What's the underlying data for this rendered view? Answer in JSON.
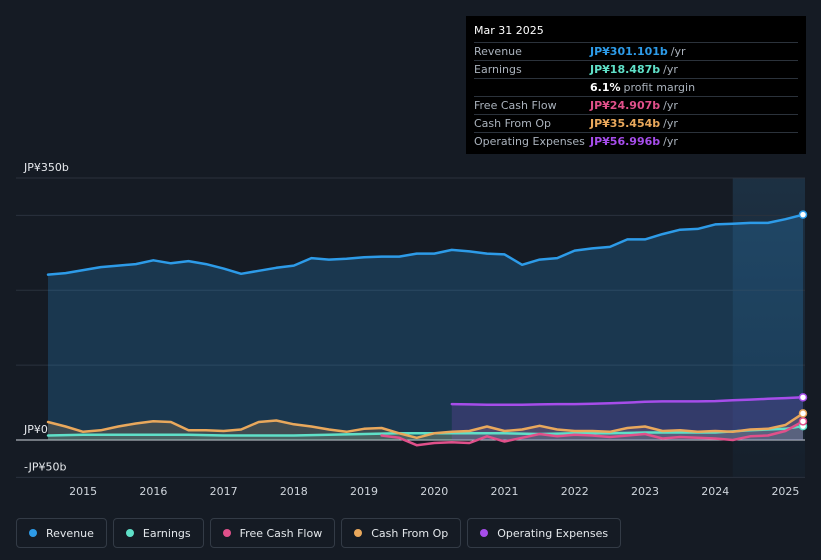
{
  "tooltip": {
    "date": "Mar 31 2025",
    "rows": [
      {
        "label": "Revenue",
        "value": "JP¥301.101b",
        "unit": "/yr",
        "color": "#2d9be8"
      },
      {
        "label": "Earnings",
        "value": "JP¥18.487b",
        "unit": "/yr",
        "color": "#5fe0c8"
      },
      {
        "label": "",
        "value": "6.1%",
        "unit": "profit margin",
        "color": "#ffffff"
      },
      {
        "label": "Free Cash Flow",
        "value": "JP¥24.907b",
        "unit": "/yr",
        "color": "#e0508a"
      },
      {
        "label": "Cash From Op",
        "value": "JP¥35.454b",
        "unit": "/yr",
        "color": "#e9a85c"
      },
      {
        "label": "Operating Expenses",
        "value": "JP¥56.996b",
        "unit": "/yr",
        "color": "#a64dea"
      }
    ]
  },
  "legend": [
    {
      "label": "Revenue",
      "color": "#2d9be8"
    },
    {
      "label": "Earnings",
      "color": "#5fe0c8"
    },
    {
      "label": "Free Cash Flow",
      "color": "#e0508a"
    },
    {
      "label": "Cash From Op",
      "color": "#e9a85c"
    },
    {
      "label": "Operating Expenses",
      "color": "#a64dea"
    }
  ],
  "chart_data": {
    "type": "area",
    "title": "",
    "ylim": [
      -50,
      350
    ],
    "y_axis_labels": [
      {
        "value": 350,
        "text": "JP¥350b"
      },
      {
        "value": 0,
        "text": "JP¥0"
      },
      {
        "value": -50,
        "text": "-JP¥50b"
      }
    ],
    "xlim": [
      2014.5,
      2025.25
    ],
    "x_ticks": [
      {
        "value": 2015,
        "text": "2015"
      },
      {
        "value": 2016,
        "text": "2016"
      },
      {
        "value": 2017,
        "text": "2017"
      },
      {
        "value": 2018,
        "text": "2018"
      },
      {
        "value": 2019,
        "text": "2019"
      },
      {
        "value": 2020,
        "text": "2020"
      },
      {
        "value": 2021,
        "text": "2021"
      },
      {
        "value": 2022,
        "text": "2022"
      },
      {
        "value": 2023,
        "text": "2023"
      },
      {
        "value": 2024,
        "text": "2024"
      },
      {
        "value": 2025,
        "text": "2025"
      }
    ],
    "highlight_start": 2024.25,
    "series": [
      {
        "name": "Revenue",
        "color": "#2d9be8",
        "fill": true,
        "x": [
          2014.5,
          2014.75,
          2015,
          2015.25,
          2015.5,
          2015.75,
          2016,
          2016.25,
          2016.5,
          2016.75,
          2017,
          2017.25,
          2017.5,
          2017.75,
          2018,
          2018.25,
          2018.5,
          2018.75,
          2019,
          2019.25,
          2019.5,
          2019.75,
          2020,
          2020.25,
          2020.5,
          2020.75,
          2021,
          2021.25,
          2021.5,
          2021.75,
          2022,
          2022.25,
          2022.5,
          2022.75,
          2023,
          2023.25,
          2023.5,
          2023.75,
          2024,
          2024.25,
          2024.5,
          2024.75,
          2025,
          2025.25
        ],
        "values": [
          221,
          223,
          227,
          231,
          233,
          235,
          240,
          236,
          239,
          235,
          229,
          222,
          226,
          230,
          233,
          243,
          241,
          242,
          244,
          245,
          245,
          249,
          249,
          254,
          252,
          249,
          248,
          234,
          241,
          243,
          253,
          256,
          258,
          268,
          268,
          275,
          281,
          282,
          288,
          289,
          290,
          290,
          295,
          301
        ]
      },
      {
        "name": "Earnings",
        "color": "#5fe0c8",
        "fill": true,
        "x": [
          2014.5,
          2015,
          2015.5,
          2016,
          2016.5,
          2017,
          2017.5,
          2018,
          2018.5,
          2019,
          2019.5,
          2020,
          2020.5,
          2021,
          2021.5,
          2022,
          2022.5,
          2023,
          2023.5,
          2024,
          2024.5,
          2025,
          2025.25
        ],
        "values": [
          6,
          7,
          7,
          7,
          7,
          6,
          6,
          6,
          7,
          8,
          9,
          9,
          9,
          9,
          8,
          9,
          9,
          10,
          10,
          10,
          13,
          15,
          18.5
        ]
      },
      {
        "name": "Free Cash Flow",
        "color": "#e0508a",
        "fill": false,
        "x": [
          2019.25,
          2019.5,
          2019.75,
          2020,
          2020.25,
          2020.5,
          2020.75,
          2021,
          2021.25,
          2021.5,
          2021.75,
          2022,
          2022.25,
          2022.5,
          2022.75,
          2023,
          2023.25,
          2023.5,
          2023.75,
          2024,
          2024.25,
          2024.5,
          2024.75,
          2025,
          2025.25
        ],
        "values": [
          6,
          3,
          -7,
          -4,
          -3,
          -4,
          5,
          -2,
          3,
          8,
          5,
          7,
          6,
          4,
          6,
          8,
          2,
          4,
          3,
          2,
          0,
          5,
          6,
          12,
          24.9
        ]
      },
      {
        "name": "Cash From Op",
        "color": "#e9a85c",
        "fill": true,
        "x": [
          2014.5,
          2014.75,
          2015,
          2015.25,
          2015.5,
          2015.75,
          2016,
          2016.25,
          2016.5,
          2016.75,
          2017,
          2017.25,
          2017.5,
          2017.75,
          2018,
          2018.25,
          2018.5,
          2018.75,
          2019,
          2019.25,
          2019.5,
          2019.75,
          2020,
          2020.25,
          2020.5,
          2020.75,
          2021,
          2021.25,
          2021.5,
          2021.75,
          2022,
          2022.25,
          2022.5,
          2022.75,
          2023,
          2023.25,
          2023.5,
          2023.75,
          2024,
          2024.25,
          2024.5,
          2024.75,
          2025,
          2025.25
        ],
        "values": [
          24,
          18,
          11,
          13,
          18,
          22,
          25,
          24,
          13,
          13,
          12,
          14,
          24,
          26,
          21,
          18,
          14,
          11,
          15,
          16,
          9,
          3,
          9,
          11,
          12,
          18,
          12,
          14,
          19,
          14,
          12,
          12,
          11,
          16,
          18,
          12,
          13,
          11,
          12,
          11,
          14,
          15,
          20,
          35.5
        ]
      },
      {
        "name": "Operating Expenses",
        "color": "#a64dea",
        "fill": true,
        "x": [
          2020.25,
          2020.5,
          2020.75,
          2021,
          2021.25,
          2021.5,
          2021.75,
          2022,
          2022.25,
          2022.5,
          2022.75,
          2023,
          2023.25,
          2023.5,
          2023.75,
          2024,
          2024.25,
          2024.5,
          2024.75,
          2025,
          2025.25
        ],
        "values": [
          48,
          47.5,
          47,
          47,
          47,
          47.5,
          48,
          48,
          48.5,
          49,
          50,
          51,
          51.5,
          51.5,
          51.5,
          52,
          53,
          54,
          55,
          56,
          57
        ]
      }
    ]
  }
}
